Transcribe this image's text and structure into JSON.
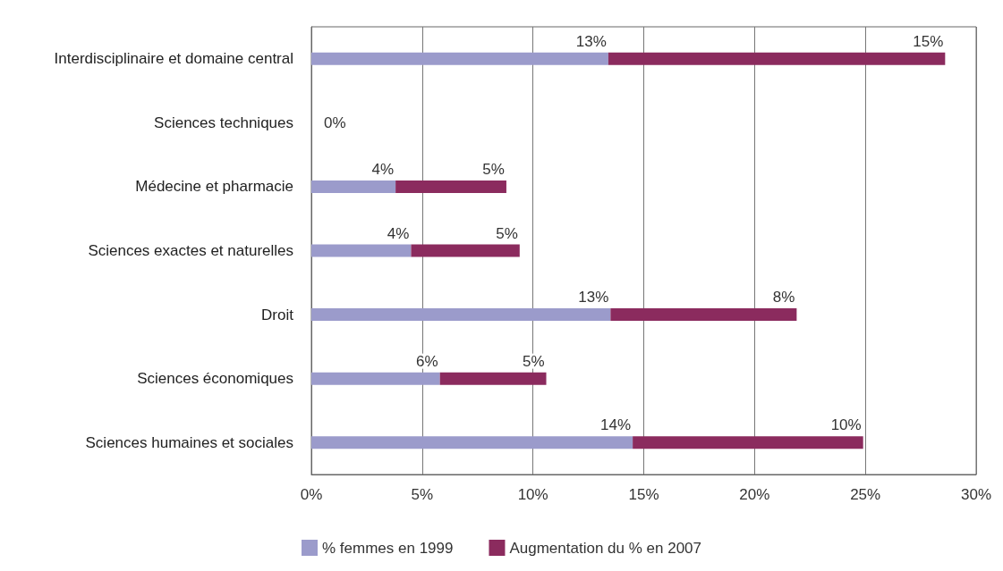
{
  "chart_data": {
    "type": "bar",
    "orientation": "horizontal",
    "stacked": true,
    "categories": [
      "Interdisciplinaire et domaine central",
      "Sciences techniques",
      "Médecine et pharmacie",
      "Sciences exactes et naturelles",
      "Droit",
      "Sciences économiques",
      "Sciences humaines et sociales"
    ],
    "series": [
      {
        "name": "% femmes en 1999",
        "color": "#9b9bcb",
        "values": [
          13.4,
          0,
          3.8,
          4.5,
          13.5,
          5.8,
          14.5
        ],
        "value_labels": [
          "13%",
          "0%",
          "4%",
          "4%",
          "13%",
          "6%",
          "14%"
        ]
      },
      {
        "name": "Augmentation du % en 2007",
        "color": "#8b2b5e",
        "values": [
          15.2,
          0,
          5.0,
          4.9,
          8.4,
          4.8,
          10.4
        ],
        "value_labels": [
          "15%",
          null,
          "5%",
          "5%",
          "8%",
          "5%",
          "10%"
        ]
      }
    ],
    "xlim": [
      0,
      30
    ],
    "xticks": [
      {
        "value": 0,
        "label": "0%"
      },
      {
        "value": 5,
        "label": "5%"
      },
      {
        "value": 10,
        "label": "10%"
      },
      {
        "value": 15,
        "label": "15%"
      },
      {
        "value": 20,
        "label": "20%"
      },
      {
        "value": 25,
        "label": "25%"
      },
      {
        "value": 30,
        "label": "30%"
      }
    ],
    "grid": "x",
    "legend": "bottom"
  }
}
